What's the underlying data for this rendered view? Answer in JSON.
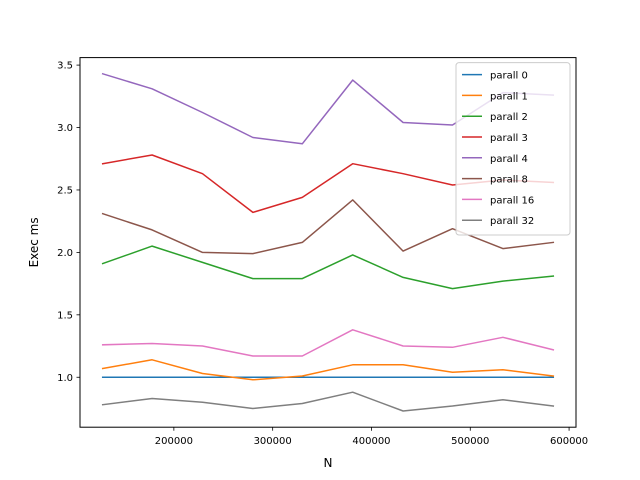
{
  "chart_data": {
    "type": "line",
    "title": "",
    "xlabel": "N",
    "ylabel": "Exec ms",
    "xlim": [
      105000,
      607000
    ],
    "ylim": [
      0.6,
      3.56
    ],
    "x_ticks": [
      200000,
      300000,
      400000,
      500000,
      600000
    ],
    "x_tick_labels": [
      "200000",
      "300000",
      "400000",
      "500000",
      "600000"
    ],
    "y_ticks": [
      1.0,
      1.5,
      2.0,
      2.5,
      3.0,
      3.5
    ],
    "y_tick_labels": [
      "1.0",
      "1.5",
      "2.0",
      "2.5",
      "3.0",
      "3.5"
    ],
    "grid": false,
    "legend_position": "top-right",
    "x": [
      128000,
      178000,
      229000,
      280000,
      330000,
      381000,
      432000,
      482000,
      533000,
      584000
    ],
    "series": [
      {
        "name": "parall 0",
        "color": "#1f77b4",
        "values": [
          1.0,
          1.0,
          1.0,
          1.0,
          1.0,
          1.0,
          1.0,
          1.0,
          1.0,
          1.0
        ]
      },
      {
        "name": "parall 1",
        "color": "#ff7f0e",
        "values": [
          1.07,
          1.14,
          1.03,
          0.98,
          1.01,
          1.1,
          1.1,
          1.04,
          1.06,
          1.01
        ]
      },
      {
        "name": "parall 2",
        "color": "#2ca02c",
        "values": [
          1.91,
          2.05,
          1.92,
          1.79,
          1.79,
          1.98,
          1.8,
          1.71,
          1.77,
          1.81
        ]
      },
      {
        "name": "parall 3",
        "color": "#d62728",
        "values": [
          2.71,
          2.78,
          2.63,
          2.32,
          2.44,
          2.71,
          2.63,
          2.54,
          2.58,
          2.56
        ]
      },
      {
        "name": "parall 4",
        "color": "#9467bd",
        "values": [
          3.43,
          3.31,
          3.12,
          2.92,
          2.87,
          3.38,
          3.04,
          3.02,
          3.28,
          3.26
        ]
      },
      {
        "name": "parall 8",
        "color": "#8c564b",
        "values": [
          2.31,
          2.18,
          2.0,
          1.99,
          2.08,
          2.42,
          2.01,
          2.19,
          2.03,
          2.08
        ]
      },
      {
        "name": "parall 16",
        "color": "#e377c2",
        "values": [
          1.26,
          1.27,
          1.25,
          1.17,
          1.17,
          1.38,
          1.25,
          1.24,
          1.32,
          1.22
        ]
      },
      {
        "name": "parall 32",
        "color": "#7f7f7f",
        "values": [
          0.78,
          0.83,
          0.8,
          0.75,
          0.79,
          0.88,
          0.73,
          0.77,
          0.82,
          0.77
        ]
      }
    ]
  }
}
